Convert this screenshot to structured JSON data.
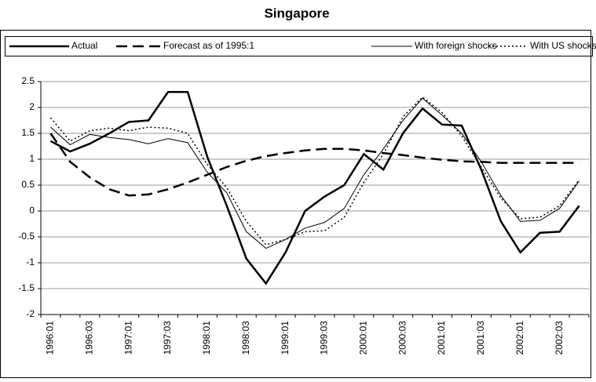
{
  "chart_data": {
    "type": "line",
    "title": "Singapore",
    "categories": [
      "1996:01",
      null,
      "1996:03",
      null,
      "1997:01",
      null,
      "1997:03",
      null,
      "1998:01",
      null,
      "1998:03",
      null,
      "1999:01",
      null,
      "1999:03",
      null,
      "2000:01",
      null,
      "2000:03",
      null,
      "2001:01",
      null,
      "2001:03",
      null,
      "2002:01",
      null,
      "2002:03",
      null
    ],
    "series": [
      {
        "name": "Actual",
        "color": "#000000",
        "line_style": "solid",
        "width": 2.5,
        "values": [
          1.35,
          1.15,
          1.3,
          1.5,
          1.72,
          1.75,
          2.3,
          2.3,
          1.05,
          0.1,
          -0.92,
          -1.4,
          -0.8,
          0,
          0.28,
          0.5,
          1.1,
          0.8,
          1.5,
          1.98,
          1.67,
          1.65,
          0.8,
          -0.2,
          -0.8,
          -0.42,
          -0.4,
          0.1
        ]
      },
      {
        "name": "Forecast as of 1995:1",
        "color": "#000000",
        "line_style": "dashed",
        "width": 2.5,
        "values": [
          1.5,
          0.95,
          0.65,
          0.42,
          0.3,
          0.32,
          0.42,
          0.55,
          0.7,
          0.85,
          0.97,
          1.06,
          1.12,
          1.17,
          1.2,
          1.2,
          1.17,
          1.12,
          1.08,
          1.03,
          0.99,
          0.96,
          0.95,
          0.93,
          0.93,
          0.93,
          0.93,
          0.93
        ]
      },
      {
        "name": "With foreign shocks",
        "color": "#000000",
        "line_style": "solid",
        "width": 1,
        "values": [
          1.62,
          1.28,
          1.48,
          1.42,
          1.38,
          1.3,
          1.4,
          1.32,
          0.75,
          0.35,
          -0.4,
          -0.72,
          -0.55,
          -0.33,
          -0.22,
          0.05,
          0.7,
          1.2,
          1.75,
          2.18,
          1.85,
          1.5,
          0.95,
          0.3,
          -0.2,
          -0.18,
          0.05,
          0.58
        ]
      },
      {
        "name": "With US shocks",
        "color": "#000000",
        "line_style": "dotted",
        "width": 1.5,
        "values": [
          1.8,
          1.35,
          1.55,
          1.6,
          1.55,
          1.62,
          1.6,
          1.5,
          0.9,
          0.45,
          -0.2,
          -0.65,
          -0.55,
          -0.4,
          -0.38,
          -0.12,
          0.55,
          1.1,
          1.82,
          2.2,
          1.9,
          1.45,
          0.85,
          0.25,
          -0.15,
          -0.12,
          0.1,
          0.6
        ]
      }
    ],
    "ylim": [
      -2,
      2.5
    ],
    "yticks": [
      -2,
      -1.5,
      -1,
      -0.5,
      0,
      0.5,
      1,
      1.5,
      2,
      2.5
    ],
    "grid": true,
    "legend": "top"
  }
}
